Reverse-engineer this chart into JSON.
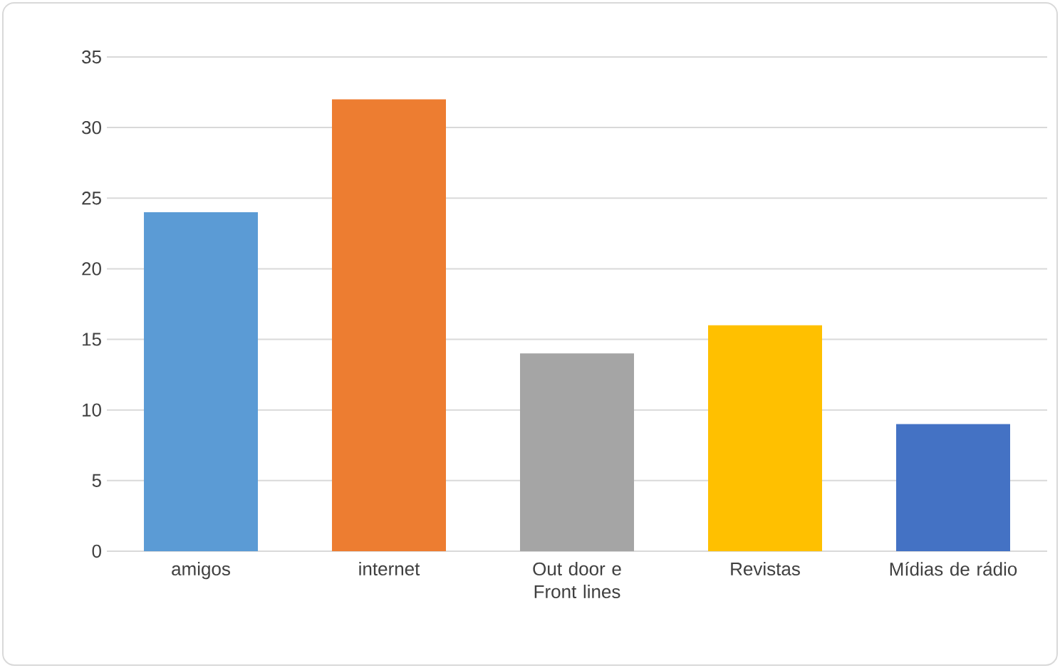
{
  "chart_data": {
    "type": "bar",
    "categories": [
      "amigos",
      "internet",
      "Out door e Front lines",
      "Revistas",
      "Mídias de rádio"
    ],
    "values": [
      24,
      32,
      14,
      16,
      9
    ],
    "colors": [
      "#5b9bd5",
      "#ed7d31",
      "#a5a5a5",
      "#ffc000",
      "#4472c4"
    ],
    "ylim": [
      0,
      35
    ],
    "yticks": [
      0,
      5,
      10,
      15,
      20,
      25,
      30,
      35
    ],
    "grid": "y"
  }
}
